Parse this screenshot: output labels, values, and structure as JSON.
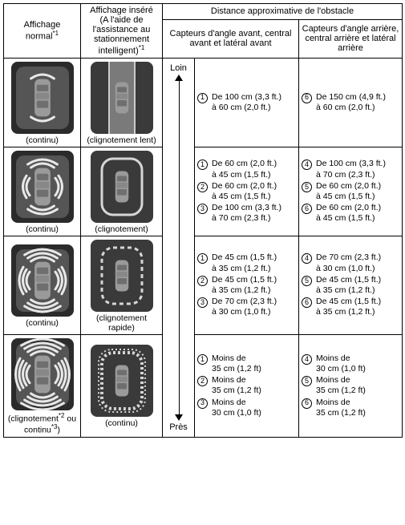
{
  "header": {
    "col1": {
      "line1": "Affichage",
      "line2": "normal",
      "sup": "*1"
    },
    "col2": {
      "line1": "Affichage inséré",
      "line2": "(A l'aide de l'assistance au stationnement intelligent)",
      "sup": "*1"
    },
    "distance_title": "Distance approximative de l'obstacle",
    "front_sensors": "Capteurs d'angle avant, central avant et latéral avant",
    "rear_sensors": "Capteurs d'angle arrière, central arrière et latéral arrière",
    "proximity_far": "Loin",
    "proximity_near": "Près"
  },
  "rows": [
    {
      "normal_label": "(continu)",
      "insert_label": "(clignotement lent)",
      "front": [
        {
          "n": "1",
          "t1": "De 100 cm (3,3 ft.)",
          "t2": "à 60 cm (2,0 ft.)"
        }
      ],
      "rear": [
        {
          "n": "6",
          "t1": "De 150 cm (4,9 ft.)",
          "t2": "à 60 cm (2,0 ft.)"
        }
      ]
    },
    {
      "normal_label": "(continu)",
      "insert_label": "(clignotement)",
      "front": [
        {
          "n": "1",
          "t1": "De 60 cm (2,0 ft.)",
          "t2": "à 45 cm (1,5 ft.)"
        },
        {
          "n": "2",
          "t1": "De 60 cm (2,0 ft.)",
          "t2": "à 45 cm (1,5 ft.)"
        },
        {
          "n": "3",
          "t1": "De 100 cm (3,3 ft.)",
          "t2": "à 70 cm (2,3 ft.)"
        }
      ],
      "rear": [
        {
          "n": "4",
          "t1": "De 100 cm (3,3 ft.)",
          "t2": "à 70 cm (2,3 ft.)"
        },
        {
          "n": "5",
          "t1": "De 60 cm (2,0 ft.)",
          "t2": "à 45 cm (1,5 ft.)"
        },
        {
          "n": "6",
          "t1": "De 60 cm (2,0 ft.)",
          "t2": "à 45 cm (1,5 ft.)"
        }
      ]
    },
    {
      "normal_label": "(continu)",
      "insert_label": "(clignotement rapide)",
      "front": [
        {
          "n": "1",
          "t1": "De 45 cm (1,5 ft.)",
          "t2": "à 35 cm (1,2 ft.)"
        },
        {
          "n": "2",
          "t1": "De 45 cm (1,5 ft.)",
          "t2": "à 35 cm (1,2 ft.)"
        },
        {
          "n": "3",
          "t1": "De 70 cm (2,3 ft.)",
          "t2": "à 30 cm (1,0 ft.)"
        }
      ],
      "rear": [
        {
          "n": "4",
          "t1": "De 70 cm (2,3 ft.)",
          "t2": "à 30 cm (1,0 ft.)"
        },
        {
          "n": "5",
          "t1": "De 45 cm (1,5 ft.)",
          "t2": "à 35 cm (1,2 ft.)"
        },
        {
          "n": "6",
          "t1": "De 45 cm (1,5 ft.)",
          "t2": "à 35 cm (1,2 ft.)"
        }
      ]
    },
    {
      "normal_label_pre": "(clignotement",
      "normal_sup1": "*2",
      "normal_mid": " ou continu",
      "normal_sup2": "*3",
      "normal_post": ")",
      "insert_label": "(continu)",
      "front": [
        {
          "n": "1",
          "t1": "Moins de",
          "t2": "35 cm (1,2 ft)"
        },
        {
          "n": "2",
          "t1": "Moins de",
          "t2": "35 cm (1,2 ft)"
        },
        {
          "n": "3",
          "t1": "Moins de",
          "t2": "30 cm (1,0 ft)"
        }
      ],
      "rear": [
        {
          "n": "4",
          "t1": "Moins de",
          "t2": "30 cm (1,0 ft)"
        },
        {
          "n": "5",
          "t1": "Moins de",
          "t2": "35 cm (1,2 ft)"
        },
        {
          "n": "6",
          "t1": "Moins de",
          "t2": "35 cm (1,2 ft)"
        }
      ]
    }
  ],
  "icons": {
    "normal": {
      "bg_outer": "#2b2b2b",
      "bg_inner": "#555555",
      "arc_color": "#e8e8e8"
    },
    "insert": {
      "bg": "#3a3a3a",
      "lane": "#7a7a7a",
      "slot_stroke": "#d6d6d6"
    },
    "levels": [
      {
        "arcs": 1,
        "slot": false
      },
      {
        "arcs": 2,
        "slot": true,
        "slot_style": "solid"
      },
      {
        "arcs": 3,
        "slot": true,
        "slot_style": "dashed"
      },
      {
        "arcs": 4,
        "slot": true,
        "slot_style": "hatched"
      }
    ]
  }
}
